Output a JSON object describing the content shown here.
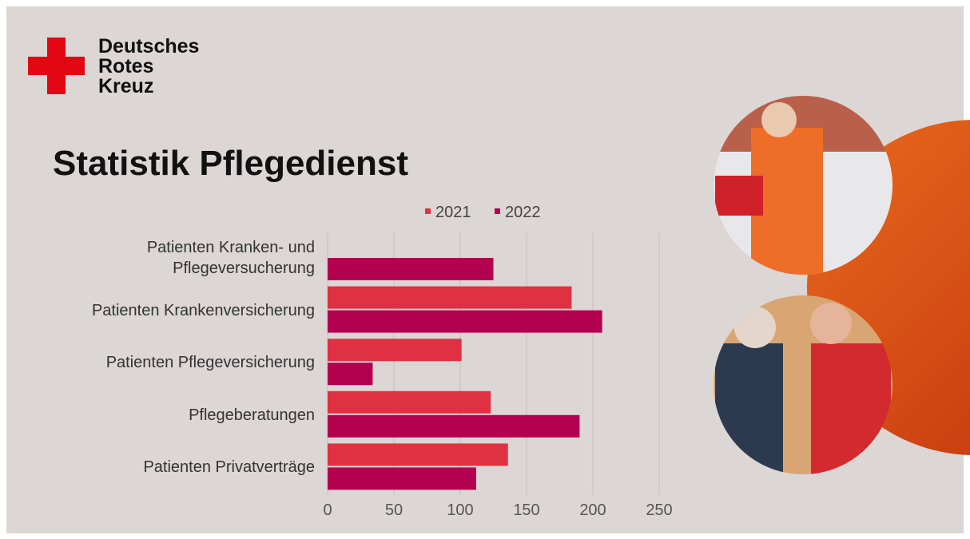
{
  "logo": {
    "lines": [
      "Deutsches",
      "Rotes",
      "Kreuz"
    ]
  },
  "chart_data": {
    "type": "bar",
    "orientation": "horizontal",
    "title": "Statistik Pflegedienst",
    "categories": [
      "Patienten Kranken- und Pflegeversucherung",
      "Patienten Krankenversicherung",
      "Patienten Pflegeversicherung",
      "Pflegeberatungen",
      "Patienten Privatverträge"
    ],
    "series": [
      {
        "name": "2021",
        "color": "#e03142",
        "values": [
          null,
          184,
          101,
          123,
          136
        ]
      },
      {
        "name": "2022",
        "color": "#b3004f",
        "values": [
          125,
          207,
          34,
          190,
          112
        ]
      }
    ],
    "xlim": [
      0,
      250
    ],
    "xticks": [
      0,
      50,
      100,
      150,
      200,
      250
    ],
    "grid": true,
    "legend": "top"
  }
}
